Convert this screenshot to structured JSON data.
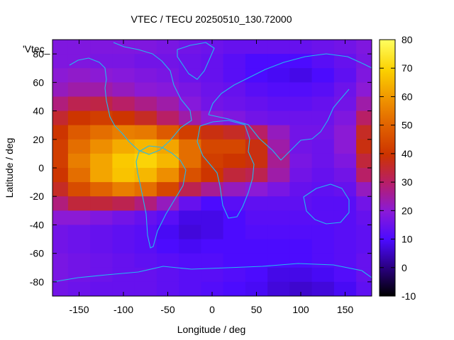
{
  "chart_data": {
    "type": "heatmap",
    "title": "VTEC / TECU 20250510_130.72000",
    "xlabel": "Longitude / deg",
    "ylabel": "Latitude / deg",
    "legend_label": "'Vtec_",
    "xlim": [
      -180,
      180
    ],
    "ylim": [
      -90,
      90
    ],
    "x_ticks": [
      -150,
      -100,
      -50,
      0,
      50,
      100,
      150
    ],
    "y_ticks": [
      -80,
      -60,
      -40,
      -20,
      0,
      20,
      40,
      60,
      80
    ],
    "colorbar": {
      "range": [
        -10,
        80
      ],
      "ticks": [
        -10,
        0,
        10,
        20,
        30,
        40,
        50,
        60,
        70,
        80
      ],
      "colormap": "black-blue-purple-red-orange-yellow"
    },
    "grid": false,
    "overlay": "coastlines",
    "overlay_color": "#22bbee",
    "field": {
      "x": [
        -175,
        -150,
        -125,
        -100,
        -75,
        -50,
        -25,
        0,
        25,
        50,
        75,
        100,
        125,
        150,
        175
      ],
      "y": [
        85,
        75,
        65,
        55,
        45,
        35,
        25,
        15,
        5,
        -5,
        -15,
        -25,
        -35,
        -45,
        -55,
        -65,
        -75,
        -85
      ],
      "values": [
        [
          18,
          18,
          18,
          18,
          18,
          17,
          16,
          15,
          14,
          14,
          14,
          14,
          15,
          16,
          18
        ],
        [
          18,
          18,
          17,
          17,
          16,
          16,
          15,
          14,
          12,
          10,
          10,
          10,
          12,
          14,
          17
        ],
        [
          20,
          21,
          20,
          19,
          18,
          17,
          15,
          14,
          12,
          10,
          9,
          8,
          10,
          13,
          18
        ],
        [
          22,
          24,
          24,
          22,
          20,
          19,
          17,
          15,
          14,
          12,
          11,
          11,
          12,
          15,
          20
        ],
        [
          28,
          32,
          33,
          30,
          27,
          24,
          19,
          16,
          15,
          14,
          13,
          13,
          14,
          16,
          24
        ],
        [
          35,
          40,
          42,
          40,
          36,
          30,
          24,
          20,
          18,
          16,
          15,
          15,
          15,
          18,
          30
        ],
        [
          40,
          48,
          52,
          55,
          54,
          48,
          42,
          38,
          36,
          30,
          22,
          16,
          16,
          20,
          36
        ],
        [
          42,
          52,
          58,
          63,
          65,
          62,
          52,
          44,
          44,
          38,
          24,
          16,
          15,
          20,
          38
        ],
        [
          42,
          55,
          62,
          68,
          70,
          65,
          52,
          42,
          40,
          38,
          26,
          17,
          15,
          18,
          34
        ],
        [
          40,
          52,
          62,
          67,
          65,
          58,
          46,
          40,
          34,
          32,
          24,
          16,
          14,
          16,
          30
        ],
        [
          36,
          45,
          50,
          55,
          52,
          44,
          32,
          26,
          22,
          20,
          17,
          14,
          13,
          14,
          22
        ],
        [
          28,
          34,
          34,
          32,
          28,
          22,
          14,
          10,
          12,
          13,
          13,
          13,
          12,
          12,
          16
        ],
        [
          20,
          20,
          18,
          16,
          14,
          12,
          8,
          8,
          10,
          12,
          12,
          12,
          12,
          12,
          14
        ],
        [
          16,
          15,
          14,
          13,
          12,
          9,
          7,
          8,
          10,
          11,
          11,
          11,
          11,
          12,
          13
        ],
        [
          16,
          15,
          14,
          13,
          12,
          10,
          9,
          10,
          10,
          10,
          10,
          10,
          11,
          12,
          13
        ],
        [
          17,
          16,
          15,
          14,
          13,
          12,
          11,
          11,
          10,
          10,
          10,
          10,
          11,
          12,
          14
        ],
        [
          17,
          16,
          15,
          14,
          14,
          13,
          12,
          12,
          11,
          10,
          8,
          8,
          9,
          11,
          14
        ],
        [
          16,
          15,
          14,
          14,
          14,
          13,
          12,
          11,
          10,
          9,
          7,
          6,
          7,
          9,
          13
        ]
      ]
    }
  }
}
